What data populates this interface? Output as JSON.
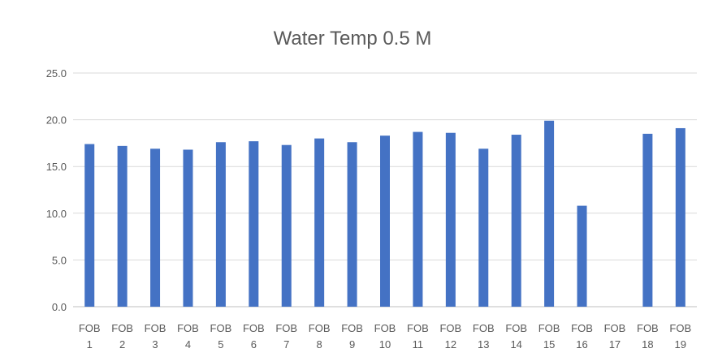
{
  "chart_data": {
    "type": "bar",
    "title": "Water Temp 0.5 M",
    "xlabel": "",
    "ylabel": "",
    "ylim": [
      0,
      25
    ],
    "yticks": [
      "0.0",
      "5.0",
      "10.0",
      "15.0",
      "20.0",
      "25.0"
    ],
    "grid": true,
    "legend": "none",
    "categories": [
      [
        "FOB",
        "1"
      ],
      [
        "FOB",
        "2"
      ],
      [
        "FOB",
        "3"
      ],
      [
        "FOB",
        "4"
      ],
      [
        "FOB",
        "5"
      ],
      [
        "FOB",
        "6"
      ],
      [
        "FOB",
        "7"
      ],
      [
        "FOB",
        "8"
      ],
      [
        "FOB",
        "9"
      ],
      [
        "FOB",
        "10"
      ],
      [
        "FOB",
        "11"
      ],
      [
        "FOB",
        "12"
      ],
      [
        "FOB",
        "13"
      ],
      [
        "FOB",
        "14"
      ],
      [
        "FOB",
        "15"
      ],
      [
        "FOB",
        "16"
      ],
      [
        "FOB",
        "17"
      ],
      [
        "FOB",
        "18"
      ],
      [
        "FOB",
        "19"
      ]
    ],
    "values": [
      17.4,
      17.2,
      16.9,
      16.8,
      17.6,
      17.7,
      17.3,
      18.0,
      17.6,
      18.3,
      18.7,
      18.6,
      16.9,
      18.4,
      19.9,
      10.8,
      null,
      18.5,
      19.1
    ],
    "colors": {
      "bar": "#4472C4",
      "grid": "#D9D9D9",
      "axis": "#BFBFBF",
      "text": "#595959"
    }
  }
}
